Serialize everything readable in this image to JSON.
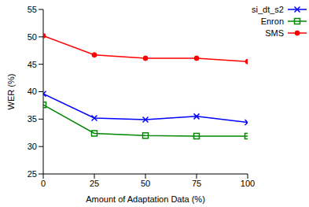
{
  "chart_data": {
    "type": "line",
    "x_label": "Amount of Adaptation Data (%)",
    "y_label": "WER (%)",
    "x": [
      0,
      25,
      50,
      75,
      100
    ],
    "xlim": [
      0,
      100
    ],
    "xticks": [
      0,
      25,
      50,
      75,
      100
    ],
    "ylim": [
      25,
      55
    ],
    "yticks": [
      25,
      30,
      35,
      40,
      45,
      50,
      55
    ],
    "grid": false,
    "legend": "right",
    "series": [
      {
        "name": "si_dt_s2",
        "color": "#0000ff",
        "marker": "x",
        "values": [
          39.6,
          35.2,
          34.9,
          35.5,
          34.4
        ]
      },
      {
        "name": "Enron",
        "color": "#008800",
        "marker": "square",
        "values": [
          37.6,
          32.4,
          32.0,
          31.9,
          31.9
        ]
      },
      {
        "name": "SMS",
        "color": "#ff0000",
        "marker": "circle",
        "values": [
          50.2,
          46.7,
          46.1,
          46.1,
          45.5
        ]
      }
    ]
  }
}
